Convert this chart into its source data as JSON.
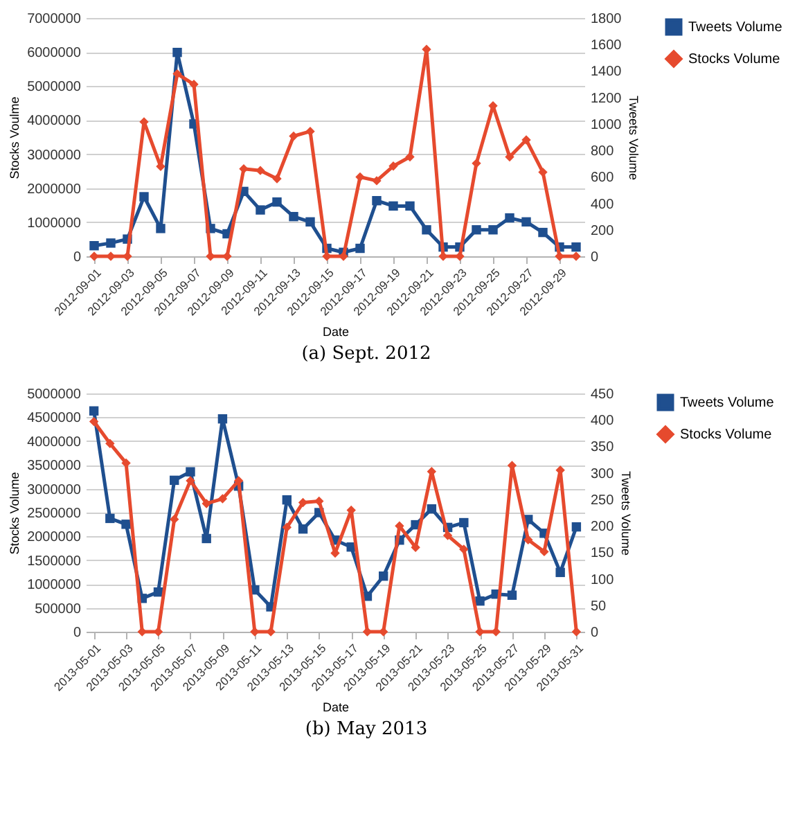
{
  "chart_data": [
    {
      "type": "line",
      "xlabel": "Date",
      "ylabel": "Stocks Voulme",
      "y2label": "Tweets Volume",
      "annotations": [
        "(a) Sept. 2012"
      ],
      "legend": "right",
      "grid": "y",
      "line_style": "solid",
      "x": [
        "2012-09-01",
        "2012-09-02",
        "2012-09-03",
        "2012-09-04",
        "2012-09-05",
        "2012-09-06",
        "2012-09-07",
        "2012-09-08",
        "2012-09-09",
        "2012-09-10",
        "2012-09-11",
        "2012-09-12",
        "2012-09-13",
        "2012-09-14",
        "2012-09-15",
        "2012-09-16",
        "2012-09-17",
        "2012-09-18",
        "2012-09-19",
        "2012-09-20",
        "2012-09-21",
        "2012-09-22",
        "2012-09-23",
        "2012-09-24",
        "2012-09-25",
        "2012-09-26",
        "2012-09-27",
        "2012-09-28",
        "2012-09-29",
        "2012-09-30"
      ],
      "xlim": [
        "2012-08-31T12:00",
        "2012-09-30T12:00"
      ],
      "xticks": [
        {
          "value": "2012-09-01",
          "label": "2012-09-01"
        },
        {
          "value": "2012-09-03",
          "label": "2012-09-03"
        },
        {
          "value": "2012-09-05",
          "label": "2012-09-05"
        },
        {
          "value": "2012-09-07",
          "label": "2012-09-07"
        },
        {
          "value": "2012-09-09",
          "label": "2012-09-09"
        },
        {
          "value": "2012-09-11",
          "label": "2012-09-11"
        },
        {
          "value": "2012-09-13",
          "label": "2012-09-13"
        },
        {
          "value": "2012-09-15",
          "label": "2012-09-15"
        },
        {
          "value": "2012-09-17",
          "label": "2012-09-17"
        },
        {
          "value": "2012-09-19",
          "label": "2012-09-19"
        },
        {
          "value": "2012-09-21",
          "label": "2012-09-21"
        },
        {
          "value": "2012-09-23",
          "label": "2012-09-23"
        },
        {
          "value": "2012-09-25",
          "label": "2012-09-25"
        },
        {
          "value": "2012-09-27",
          "label": "2012-09-27"
        },
        {
          "value": "2012-09-29",
          "label": "2012-09-29"
        }
      ],
      "ylim": [
        0,
        7000000
      ],
      "yticks": [
        0,
        1000000,
        2000000,
        3000000,
        4000000,
        5000000,
        6000000,
        7000000
      ],
      "y2lim": [
        0,
        1800
      ],
      "y2ticks": [
        0,
        200,
        400,
        600,
        800,
        1000,
        1200,
        1400,
        1600,
        1800
      ],
      "series": [
        {
          "name": "Tweets Volume",
          "color": "#1f4f8f",
          "marker": "square",
          "axis": "y2",
          "values": [
            80,
            100,
            130,
            450,
            210,
            1540,
            1000,
            210,
            170,
            490,
            350,
            410,
            300,
            260,
            60,
            30,
            60,
            420,
            380,
            380,
            200,
            70,
            70,
            200,
            200,
            290,
            260,
            180,
            70,
            70
          ]
        },
        {
          "name": "Stocks Volume",
          "color": "#e64a2e",
          "marker": "diamond",
          "values": [
            0,
            0,
            0,
            3950000,
            2640000,
            5360000,
            5050000,
            0,
            0,
            2570000,
            2520000,
            2280000,
            3530000,
            3670000,
            0,
            0,
            2330000,
            2220000,
            2650000,
            2920000,
            6080000,
            0,
            0,
            2730000,
            4420000,
            2920000,
            3420000,
            2470000,
            0,
            0
          ]
        }
      ]
    },
    {
      "type": "line",
      "xlabel": "Date",
      "ylabel": "Stocks Volume",
      "y2label": "Tweets Volume",
      "annotations": [
        "(b) May 2013"
      ],
      "legend": "right",
      "grid": "y",
      "line_style": "solid",
      "x": [
        "2013-05-01",
        "2013-05-02",
        "2013-05-03",
        "2013-05-04",
        "2013-05-05",
        "2013-05-06",
        "2013-05-07",
        "2013-05-08",
        "2013-05-09",
        "2013-05-10",
        "2013-05-11",
        "2013-05-12",
        "2013-05-13",
        "2013-05-14",
        "2013-05-15",
        "2013-05-16",
        "2013-05-17",
        "2013-05-18",
        "2013-05-19",
        "2013-05-20",
        "2013-05-21",
        "2013-05-22",
        "2013-05-23",
        "2013-05-24",
        "2013-05-25",
        "2013-05-26",
        "2013-05-27",
        "2013-05-28",
        "2013-05-29",
        "2013-05-30",
        "2013-05-31"
      ],
      "xlim": [
        "2013-04-30T12:00",
        "2013-05-31T12:00"
      ],
      "xticks": [
        {
          "value": "2013-05-01",
          "label": "2013-05-01"
        },
        {
          "value": "2013-05-03",
          "label": "2013-05-03"
        },
        {
          "value": "2013-05-05",
          "label": "2013-05-05"
        },
        {
          "value": "2013-05-07",
          "label": "2013-05-07"
        },
        {
          "value": "2013-05-09",
          "label": "2013-05-09"
        },
        {
          "value": "2013-05-11",
          "label": "2013-05-11"
        },
        {
          "value": "2013-05-13",
          "label": "2013-05-13"
        },
        {
          "value": "2013-05-15",
          "label": "2013-05-15"
        },
        {
          "value": "2013-05-17",
          "label": "2013-05-17"
        },
        {
          "value": "2013-05-19",
          "label": "2013-05-19"
        },
        {
          "value": "2013-05-21",
          "label": "2013-05-21"
        },
        {
          "value": "2013-05-23",
          "label": "2013-05-23"
        },
        {
          "value": "2013-05-25",
          "label": "2013-05-25"
        },
        {
          "value": "2013-05-27",
          "label": "2013-05-27"
        },
        {
          "value": "2013-05-29",
          "label": "2013-05-29"
        },
        {
          "value": "2013-05-31",
          "label": "2013-05-31"
        }
      ],
      "ylim": [
        0,
        5000000
      ],
      "yticks": [
        0,
        500000,
        1000000,
        1500000,
        2000000,
        2500000,
        3000000,
        3500000,
        4000000,
        4500000,
        5000000
      ],
      "y2lim": [
        0,
        450
      ],
      "y2ticks": [
        0,
        50,
        100,
        150,
        200,
        250,
        300,
        350,
        400,
        450
      ],
      "series": [
        {
          "name": "Tweets Volume",
          "color": "#1f4f8f",
          "marker": "square",
          "axis": "y2",
          "values": [
            417,
            214,
            203,
            63,
            75,
            286,
            302,
            176,
            402,
            275,
            79,
            47,
            249,
            194,
            225,
            173,
            160,
            67,
            105,
            173,
            202,
            232,
            197,
            206,
            58,
            71,
            69,
            212,
            186,
            112,
            198
          ]
        },
        {
          "name": "Stocks Volume",
          "color": "#e64a2e",
          "marker": "diamond",
          "values": [
            4410000,
            3950000,
            3540000,
            0,
            0,
            2360000,
            3170000,
            2690000,
            2790000,
            3170000,
            0,
            0,
            2190000,
            2710000,
            2740000,
            1650000,
            2550000,
            0,
            0,
            2220000,
            1770000,
            3360000,
            2020000,
            1730000,
            0,
            0,
            3490000,
            1930000,
            1680000,
            3390000,
            0
          ]
        }
      ]
    }
  ]
}
